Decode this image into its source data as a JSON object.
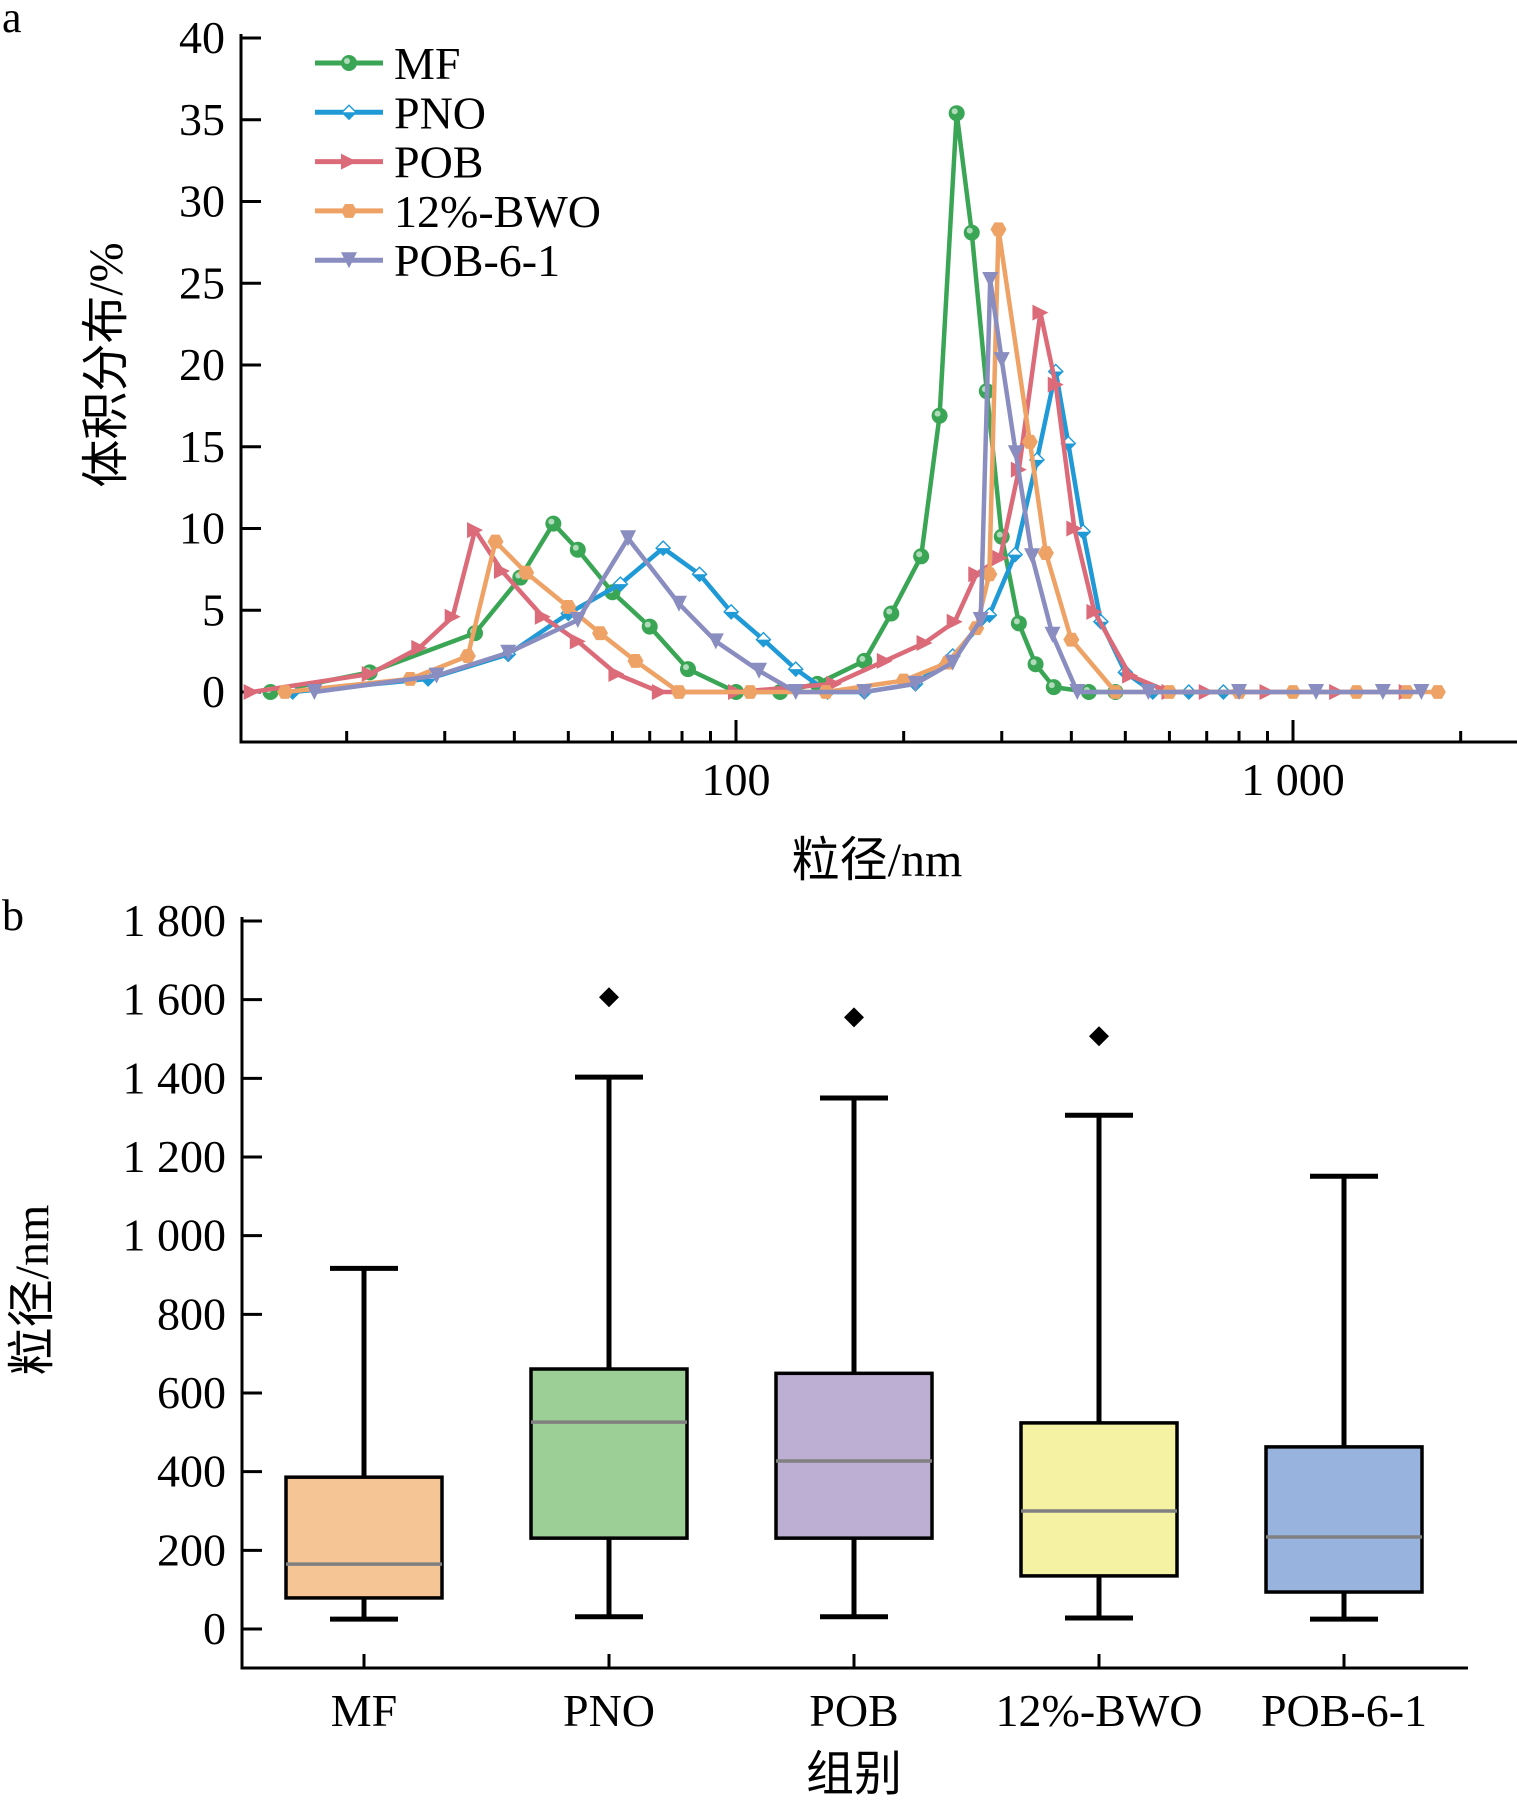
{
  "panels": {
    "a": "a",
    "b": "b"
  },
  "chart_data": [
    {
      "type": "line",
      "panel": "a",
      "title": "",
      "xlabel": "粒径/nm",
      "ylabel": "体积分布/%",
      "xscale": "log",
      "xlim": [
        13,
        2500
      ],
      "ylim": [
        -3,
        40
      ],
      "xticks": [
        {
          "value": 100,
          "label": "100"
        },
        {
          "value": 1000,
          "label": "1 000"
        }
      ],
      "xminor_ticks": [
        20,
        30,
        40,
        50,
        60,
        70,
        80,
        90,
        200,
        300,
        400,
        500,
        600,
        700,
        800,
        900,
        2000
      ],
      "yticks": [
        {
          "value": 0,
          "label": "0"
        },
        {
          "value": 5,
          "label": "5"
        },
        {
          "value": 10,
          "label": "10"
        },
        {
          "value": 15,
          "label": "15"
        },
        {
          "value": 20,
          "label": "20"
        },
        {
          "value": 25,
          "label": "25"
        },
        {
          "value": 30,
          "label": "30"
        },
        {
          "value": 35,
          "label": "35"
        },
        {
          "value": 40,
          "label": "40"
        }
      ],
      "grid": false,
      "legend_position": "top-left",
      "series": [
        {
          "name": "MF",
          "color": "#3aa655",
          "marker": "circle",
          "x": [
            14.6,
            22,
            34,
            41,
            47,
            52,
            60,
            70,
            82,
            100,
            120,
            140,
            170,
            190,
            215,
            232,
            249,
            265,
            282,
            300,
            322,
            345,
            372,
            430,
            480
          ],
          "y": [
            0,
            1.2,
            3.6,
            7.0,
            10.3,
            8.7,
            6.1,
            4.0,
            1.4,
            0,
            0,
            0.5,
            1.9,
            4.8,
            8.3,
            16.9,
            35.4,
            28.1,
            18.4,
            9.5,
            4.2,
            1.7,
            0.3,
            0,
            0
          ]
        },
        {
          "name": "PNO",
          "color": "#1f9ad6",
          "marker": "diamond",
          "x": [
            16,
            28,
            39,
            50,
            62,
            74,
            86,
            98,
            112,
            128,
            146,
            170,
            210,
            245,
            285,
            317,
            347,
            375,
            395,
            420,
            452,
            500,
            560,
            650,
            750
          ],
          "y": [
            0,
            0.8,
            2.3,
            4.8,
            6.6,
            8.8,
            7.2,
            4.9,
            3.2,
            1.4,
            0,
            0,
            0.5,
            2.2,
            4.7,
            8.4,
            14.2,
            19.6,
            15.2,
            9.8,
            4.3,
            1.2,
            0,
            0,
            0
          ]
        },
        {
          "name": "POB",
          "color": "#dc6b7a",
          "marker": "triangle-right",
          "x": [
            13.5,
            22,
            27,
            31,
            34,
            38,
            45,
            52,
            61,
            73,
            100,
            150,
            185,
            218,
            247,
            270,
            298,
            322,
            352,
            375,
            405,
            440,
            510,
            600,
            700,
            900,
            1200,
            1600
          ],
          "y": [
            0,
            1.1,
            2.7,
            4.6,
            9.9,
            7.4,
            4.6,
            3.1,
            1.1,
            0,
            0,
            0.5,
            1.9,
            3.0,
            4.3,
            7.2,
            8.2,
            13.6,
            23.2,
            18.8,
            10.0,
            4.9,
            1.0,
            0,
            0,
            0,
            0,
            0
          ]
        },
        {
          "name": "12%-BWO",
          "color": "#eea266",
          "marker": "hexagon",
          "x": [
            15.5,
            26,
            33,
            37,
            42,
            50,
            57,
            66,
            79,
            106,
            145,
            200,
            240,
            270,
            285,
            296,
            337,
            360,
            400,
            480,
            600,
            800,
            1000,
            1300,
            1600,
            1820
          ],
          "y": [
            0,
            0.8,
            2.2,
            9.2,
            7.3,
            5.2,
            3.6,
            1.9,
            0,
            0,
            0,
            0.7,
            1.8,
            3.9,
            7.2,
            28.3,
            15.3,
            8.5,
            3.2,
            0,
            0,
            0,
            0,
            0,
            0,
            0
          ]
        },
        {
          "name": "POB-6-1",
          "color": "#8a8dc0",
          "marker": "triangle-down",
          "x": [
            17.5,
            29,
            39,
            52,
            64,
            79,
            92,
            110,
            128,
            170,
            210,
            245,
            275,
            286,
            300,
            318,
            340,
            370,
            410,
            550,
            800,
            1100,
            1450,
            1700
          ],
          "y": [
            0,
            1.0,
            2.4,
            4.4,
            9.4,
            5.4,
            3.1,
            1.3,
            0,
            0,
            0.5,
            1.8,
            4.4,
            25.2,
            20.3,
            14.6,
            8.3,
            3.5,
            0,
            0,
            0,
            0,
            0,
            0
          ]
        }
      ]
    },
    {
      "type": "box",
      "panel": "b",
      "title": "",
      "xlabel": "组别",
      "ylabel": "粒径/nm",
      "ylim": [
        -200,
        1800
      ],
      "yticks": [
        {
          "value": 0,
          "label": "0"
        },
        {
          "value": 200,
          "label": "200"
        },
        {
          "value": 400,
          "label": "400"
        },
        {
          "value": 600,
          "label": "600"
        },
        {
          "value": 800,
          "label": "800"
        },
        {
          "value": 1000,
          "label": "1 000"
        },
        {
          "value": 1200,
          "label": "1 200"
        },
        {
          "value": 1400,
          "label": "1 400"
        },
        {
          "value": 1600,
          "label": "1 600"
        },
        {
          "value": 1800,
          "label": "1 800"
        }
      ],
      "grid": false,
      "median_color": "#808080",
      "categories": [
        "MF",
        "PNO",
        "POB",
        "12%-BWO",
        "POB-6-1"
      ],
      "boxes": [
        {
          "name": "MF",
          "color": "#f5c596",
          "whisker_low": 25,
          "q1": 79,
          "median": 165,
          "q3": 386,
          "whisker_high": 917,
          "outliers": []
        },
        {
          "name": "PNO",
          "color": "#9bcf96",
          "whisker_low": 31,
          "q1": 231,
          "median": 526,
          "q3": 661,
          "whisker_high": 1403,
          "outliers": [
            1606
          ]
        },
        {
          "name": "POB",
          "color": "#bdafd4",
          "whisker_low": 31,
          "q1": 231,
          "median": 427,
          "q3": 650,
          "whisker_high": 1350,
          "outliers": [
            1555
          ]
        },
        {
          "name": "12%-BWO",
          "color": "#f5f3a3",
          "whisker_low": 28,
          "q1": 135,
          "median": 300,
          "q3": 524,
          "whisker_high": 1306,
          "outliers": [
            1507
          ]
        },
        {
          "name": "POB-6-1",
          "color": "#98b4de",
          "whisker_low": 25,
          "q1": 94,
          "median": 234,
          "q3": 463,
          "whisker_high": 1151,
          "outliers": []
        }
      ]
    }
  ]
}
